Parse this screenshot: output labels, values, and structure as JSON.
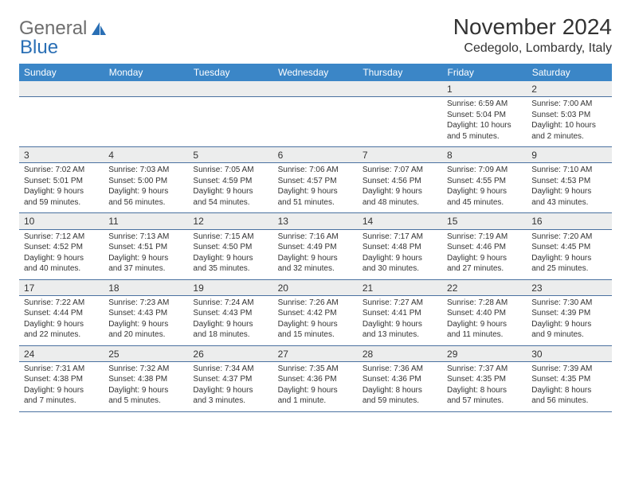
{
  "brand": {
    "part1": "General",
    "part2": "Blue"
  },
  "title": "November 2024",
  "location": "Cedegolo, Lombardy, Italy",
  "colors": {
    "header_bg": "#3b86c7",
    "header_text": "#ffffff",
    "daynum_bg": "#eceded",
    "row_divider": "#4a71a0",
    "body_text": "#333333",
    "logo_gray": "#6e6e6e",
    "logo_blue": "#2a6fb5",
    "page_bg": "#ffffff"
  },
  "typography": {
    "title_fontsize": 28,
    "location_fontsize": 16,
    "weekday_fontsize": 12,
    "daynum_fontsize": 12,
    "cell_fontsize": 10,
    "font_family": "Arial"
  },
  "weekdays": [
    "Sunday",
    "Monday",
    "Tuesday",
    "Wednesday",
    "Thursday",
    "Friday",
    "Saturday"
  ],
  "weeks": [
    [
      null,
      null,
      null,
      null,
      null,
      {
        "n": "1",
        "sunrise": "Sunrise: 6:59 AM",
        "sunset": "Sunset: 5:04 PM",
        "daylight": "Daylight: 10 hours and 5 minutes."
      },
      {
        "n": "2",
        "sunrise": "Sunrise: 7:00 AM",
        "sunset": "Sunset: 5:03 PM",
        "daylight": "Daylight: 10 hours and 2 minutes."
      }
    ],
    [
      {
        "n": "3",
        "sunrise": "Sunrise: 7:02 AM",
        "sunset": "Sunset: 5:01 PM",
        "daylight": "Daylight: 9 hours and 59 minutes."
      },
      {
        "n": "4",
        "sunrise": "Sunrise: 7:03 AM",
        "sunset": "Sunset: 5:00 PM",
        "daylight": "Daylight: 9 hours and 56 minutes."
      },
      {
        "n": "5",
        "sunrise": "Sunrise: 7:05 AM",
        "sunset": "Sunset: 4:59 PM",
        "daylight": "Daylight: 9 hours and 54 minutes."
      },
      {
        "n": "6",
        "sunrise": "Sunrise: 7:06 AM",
        "sunset": "Sunset: 4:57 PM",
        "daylight": "Daylight: 9 hours and 51 minutes."
      },
      {
        "n": "7",
        "sunrise": "Sunrise: 7:07 AM",
        "sunset": "Sunset: 4:56 PM",
        "daylight": "Daylight: 9 hours and 48 minutes."
      },
      {
        "n": "8",
        "sunrise": "Sunrise: 7:09 AM",
        "sunset": "Sunset: 4:55 PM",
        "daylight": "Daylight: 9 hours and 45 minutes."
      },
      {
        "n": "9",
        "sunrise": "Sunrise: 7:10 AM",
        "sunset": "Sunset: 4:53 PM",
        "daylight": "Daylight: 9 hours and 43 minutes."
      }
    ],
    [
      {
        "n": "10",
        "sunrise": "Sunrise: 7:12 AM",
        "sunset": "Sunset: 4:52 PM",
        "daylight": "Daylight: 9 hours and 40 minutes."
      },
      {
        "n": "11",
        "sunrise": "Sunrise: 7:13 AM",
        "sunset": "Sunset: 4:51 PM",
        "daylight": "Daylight: 9 hours and 37 minutes."
      },
      {
        "n": "12",
        "sunrise": "Sunrise: 7:15 AM",
        "sunset": "Sunset: 4:50 PM",
        "daylight": "Daylight: 9 hours and 35 minutes."
      },
      {
        "n": "13",
        "sunrise": "Sunrise: 7:16 AM",
        "sunset": "Sunset: 4:49 PM",
        "daylight": "Daylight: 9 hours and 32 minutes."
      },
      {
        "n": "14",
        "sunrise": "Sunrise: 7:17 AM",
        "sunset": "Sunset: 4:48 PM",
        "daylight": "Daylight: 9 hours and 30 minutes."
      },
      {
        "n": "15",
        "sunrise": "Sunrise: 7:19 AM",
        "sunset": "Sunset: 4:46 PM",
        "daylight": "Daylight: 9 hours and 27 minutes."
      },
      {
        "n": "16",
        "sunrise": "Sunrise: 7:20 AM",
        "sunset": "Sunset: 4:45 PM",
        "daylight": "Daylight: 9 hours and 25 minutes."
      }
    ],
    [
      {
        "n": "17",
        "sunrise": "Sunrise: 7:22 AM",
        "sunset": "Sunset: 4:44 PM",
        "daylight": "Daylight: 9 hours and 22 minutes."
      },
      {
        "n": "18",
        "sunrise": "Sunrise: 7:23 AM",
        "sunset": "Sunset: 4:43 PM",
        "daylight": "Daylight: 9 hours and 20 minutes."
      },
      {
        "n": "19",
        "sunrise": "Sunrise: 7:24 AM",
        "sunset": "Sunset: 4:43 PM",
        "daylight": "Daylight: 9 hours and 18 minutes."
      },
      {
        "n": "20",
        "sunrise": "Sunrise: 7:26 AM",
        "sunset": "Sunset: 4:42 PM",
        "daylight": "Daylight: 9 hours and 15 minutes."
      },
      {
        "n": "21",
        "sunrise": "Sunrise: 7:27 AM",
        "sunset": "Sunset: 4:41 PM",
        "daylight": "Daylight: 9 hours and 13 minutes."
      },
      {
        "n": "22",
        "sunrise": "Sunrise: 7:28 AM",
        "sunset": "Sunset: 4:40 PM",
        "daylight": "Daylight: 9 hours and 11 minutes."
      },
      {
        "n": "23",
        "sunrise": "Sunrise: 7:30 AM",
        "sunset": "Sunset: 4:39 PM",
        "daylight": "Daylight: 9 hours and 9 minutes."
      }
    ],
    [
      {
        "n": "24",
        "sunrise": "Sunrise: 7:31 AM",
        "sunset": "Sunset: 4:38 PM",
        "daylight": "Daylight: 9 hours and 7 minutes."
      },
      {
        "n": "25",
        "sunrise": "Sunrise: 7:32 AM",
        "sunset": "Sunset: 4:38 PM",
        "daylight": "Daylight: 9 hours and 5 minutes."
      },
      {
        "n": "26",
        "sunrise": "Sunrise: 7:34 AM",
        "sunset": "Sunset: 4:37 PM",
        "daylight": "Daylight: 9 hours and 3 minutes."
      },
      {
        "n": "27",
        "sunrise": "Sunrise: 7:35 AM",
        "sunset": "Sunset: 4:36 PM",
        "daylight": "Daylight: 9 hours and 1 minute."
      },
      {
        "n": "28",
        "sunrise": "Sunrise: 7:36 AM",
        "sunset": "Sunset: 4:36 PM",
        "daylight": "Daylight: 8 hours and 59 minutes."
      },
      {
        "n": "29",
        "sunrise": "Sunrise: 7:37 AM",
        "sunset": "Sunset: 4:35 PM",
        "daylight": "Daylight: 8 hours and 57 minutes."
      },
      {
        "n": "30",
        "sunrise": "Sunrise: 7:39 AM",
        "sunset": "Sunset: 4:35 PM",
        "daylight": "Daylight: 8 hours and 56 minutes."
      }
    ]
  ]
}
